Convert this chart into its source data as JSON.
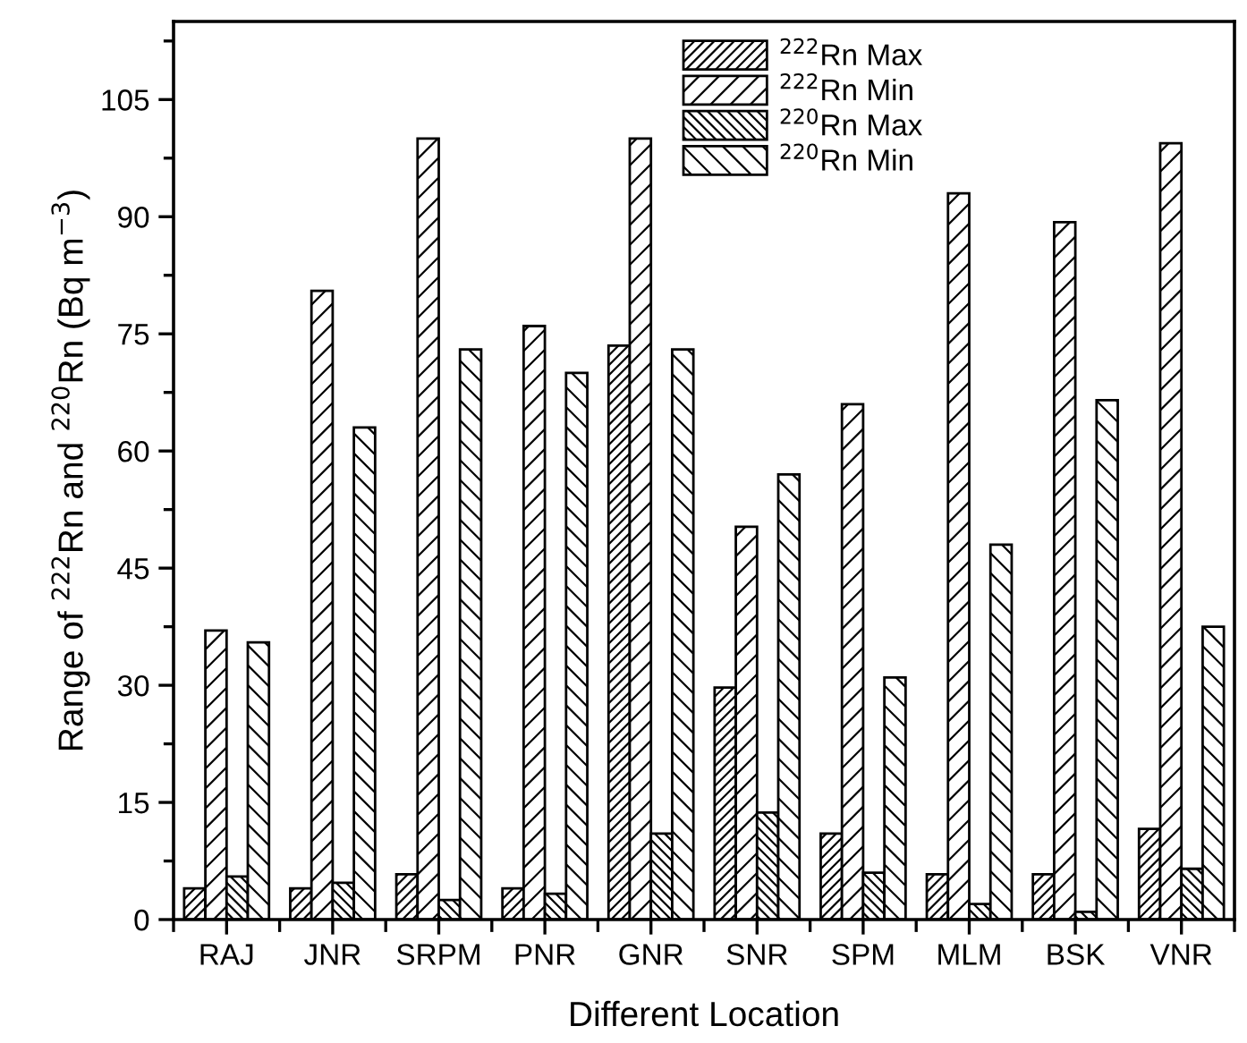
{
  "chart_data": {
    "type": "bar",
    "xlabel": "Different Location",
    "ylabel": "Range of $^{222}$Rn and $^{220}$Rn (Bq m$^{−3}$)",
    "categories": [
      "RAJ",
      "JNR",
      "SRPM",
      "PNR",
      "GNR",
      "SNR",
      "SPM",
      "MLM",
      "BSK",
      "VNR"
    ],
    "series": [
      {
        "name": "$^{222}$Rn Max",
        "values": [
          4,
          4,
          5.8,
          4,
          73.5,
          29.7,
          11,
          5.8,
          5.8,
          11.6
        ]
      },
      {
        "name": "$^{222}$Rn Min",
        "values": [
          37,
          80.5,
          100,
          76,
          100,
          50.3,
          66,
          93,
          89.3,
          99.4
        ]
      },
      {
        "name": "$^{220}$Rn Max",
        "values": [
          5.5,
          4.7,
          2.5,
          3.3,
          11,
          13.7,
          6,
          2,
          1,
          6.5
        ]
      },
      {
        "name": "$^{220}$Rn Min",
        "values": [
          35.5,
          63,
          73,
          70,
          73,
          57,
          31,
          48,
          66.5,
          37.5
        ]
      }
    ],
    "ylim": [
      0,
      115
    ],
    "yticks": [
      0,
      15,
      30,
      45,
      60,
      75,
      90,
      105
    ],
    "grid": false,
    "legend": "top"
  }
}
